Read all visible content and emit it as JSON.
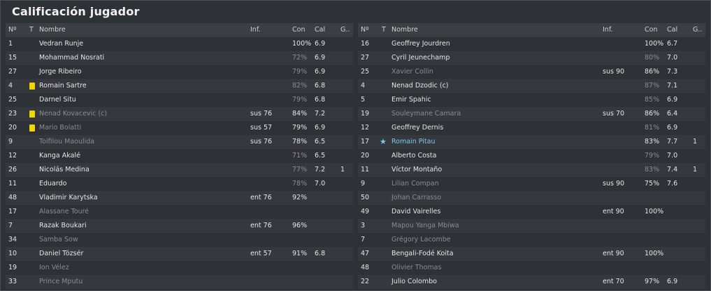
{
  "title": "Calificación jugador",
  "headers": {
    "num": "Nº",
    "t": "T",
    "name": "Nombre",
    "inf": "Inf.",
    "con": "Con",
    "cal": "Cal",
    "g": "G.."
  },
  "left_rows": [
    {
      "num": "1",
      "name": "Vedran Runje",
      "inf": "",
      "con": "100%",
      "cal": "6.9",
      "g": "",
      "dim": false,
      "card": false
    },
    {
      "num": "15",
      "name": "Mohammad Nosrati",
      "inf": "",
      "con": "72%",
      "cal": "6.9",
      "g": "",
      "dim": false,
      "card": false,
      "con_style": "dim"
    },
    {
      "num": "27",
      "name": "Jorge Ribeiro",
      "inf": "",
      "con": "79%",
      "cal": "6.9",
      "g": "",
      "dim": false,
      "card": false,
      "con_style": "dim"
    },
    {
      "num": "4",
      "name": "Romain Sartre",
      "inf": "",
      "con": "82%",
      "cal": "6.8",
      "g": "",
      "dim": false,
      "card": true,
      "con_style": "dim"
    },
    {
      "num": "25",
      "name": "Darnel Situ",
      "inf": "",
      "con": "79%",
      "cal": "6.8",
      "g": "",
      "dim": false,
      "card": false,
      "con_style": "dim"
    },
    {
      "num": "23",
      "name": "Nenad Kovacevic (c)",
      "inf": "sus 76",
      "con": "84%",
      "cal": "7.2",
      "g": "",
      "dim": true,
      "card": true
    },
    {
      "num": "20",
      "name": "Mario Bolatti",
      "inf": "sus 57",
      "con": "79%",
      "cal": "6.9",
      "g": "",
      "dim": true,
      "card": true
    },
    {
      "num": "9",
      "name": "Toifilou Maoulida",
      "inf": "sus 76",
      "con": "78%",
      "cal": "6.5",
      "g": "",
      "dim": true,
      "card": false
    },
    {
      "num": "12",
      "name": "Kanga Akalé",
      "inf": "",
      "con": "71%",
      "cal": "6.5",
      "g": "",
      "dim": false,
      "card": false,
      "con_style": "pink"
    },
    {
      "num": "26",
      "name": "Nicolás Medina",
      "inf": "",
      "con": "77%",
      "cal": "7.2",
      "g": "1",
      "dim": false,
      "card": false,
      "con_style": "dim"
    },
    {
      "num": "11",
      "name": "Eduardo",
      "inf": "",
      "con": "78%",
      "cal": "7.0",
      "g": "",
      "dim": false,
      "card": false,
      "con_style": "dim"
    },
    {
      "num": "48",
      "name": "Vladimir Karytska",
      "inf": "ent 76",
      "con": "92%",
      "cal": "",
      "g": "",
      "dim": false,
      "card": false
    },
    {
      "num": "17",
      "name": "Alassane Touré",
      "inf": "",
      "con": "",
      "cal": "",
      "g": "",
      "dim": true,
      "card": false
    },
    {
      "num": "7",
      "name": "Razak Boukari",
      "inf": "ent 76",
      "con": "96%",
      "cal": "",
      "g": "",
      "dim": false,
      "card": false
    },
    {
      "num": "34",
      "name": "Samba Sow",
      "inf": "",
      "con": "",
      "cal": "",
      "g": "",
      "dim": true,
      "card": false
    },
    {
      "num": "10",
      "name": "Daniel Tözsér",
      "inf": "ent 57",
      "con": "91%",
      "cal": "6.8",
      "g": "",
      "dim": false,
      "card": false
    },
    {
      "num": "19",
      "name": "Ion Vélez",
      "inf": "",
      "con": "",
      "cal": "",
      "g": "",
      "dim": true,
      "card": false
    },
    {
      "num": "33",
      "name": "Prince Mputu",
      "inf": "",
      "con": "",
      "cal": "",
      "g": "",
      "dim": true,
      "card": false
    }
  ],
  "right_rows": [
    {
      "num": "16",
      "name": "Geoffrey Jourdren",
      "inf": "",
      "con": "100%",
      "cal": "6.7",
      "g": "",
      "dim": false
    },
    {
      "num": "27",
      "name": "Cyril Jeunechamp",
      "inf": "",
      "con": "80%",
      "cal": "7.0",
      "g": "",
      "dim": false,
      "con_style": "dim"
    },
    {
      "num": "25",
      "name": "Xavier Collin",
      "inf": "sus 90",
      "con": "86%",
      "cal": "7.3",
      "g": "",
      "dim": true
    },
    {
      "num": "4",
      "name": "Nenad Dzodic (c)",
      "inf": "",
      "con": "87%",
      "cal": "7.1",
      "g": "",
      "dim": false,
      "con_style": "dim"
    },
    {
      "num": "5",
      "name": "Emir Spahic",
      "inf": "",
      "con": "85%",
      "cal": "6.9",
      "g": "",
      "dim": false,
      "con_style": "dim"
    },
    {
      "num": "19",
      "name": "Souleymane Camara",
      "inf": "sus 70",
      "con": "86%",
      "cal": "6.4",
      "g": "",
      "dim": true
    },
    {
      "num": "12",
      "name": "Geoffrey Dernis",
      "inf": "",
      "con": "81%",
      "cal": "6.9",
      "g": "",
      "dim": false,
      "con_style": "dim"
    },
    {
      "num": "17",
      "name": "Romain Pitau",
      "inf": "",
      "con": "83%",
      "cal": "7.7",
      "g": "1",
      "dim": false,
      "star": true
    },
    {
      "num": "20",
      "name": "Alberto Costa",
      "inf": "",
      "con": "79%",
      "cal": "7.0",
      "g": "",
      "dim": false,
      "con_style": "dim"
    },
    {
      "num": "11",
      "name": "Víctor Montaño",
      "inf": "",
      "con": "83%",
      "cal": "7.4",
      "g": "1",
      "dim": false,
      "con_style": "dim"
    },
    {
      "num": "9",
      "name": "Lilian Compan",
      "inf": "sus 90",
      "con": "75%",
      "cal": "7.6",
      "g": "",
      "dim": true
    },
    {
      "num": "50",
      "name": "Johan Carrasso",
      "inf": "",
      "con": "",
      "cal": "",
      "g": "",
      "dim": true
    },
    {
      "num": "49",
      "name": "David Vairelles",
      "inf": "ent 90",
      "con": "100%",
      "cal": "",
      "g": "",
      "dim": false
    },
    {
      "num": "3",
      "name": "Mapou Yanga Mbiwa",
      "inf": "",
      "con": "",
      "cal": "",
      "g": "",
      "dim": true
    },
    {
      "num": "7",
      "name": "Grégory Lacombe",
      "inf": "",
      "con": "",
      "cal": "",
      "g": "",
      "dim": true
    },
    {
      "num": "47",
      "name": "Bengali-Fodé Koita",
      "inf": "ent 90",
      "con": "100%",
      "cal": "",
      "g": "",
      "dim": false
    },
    {
      "num": "48",
      "name": "Olivier Thomas",
      "inf": "",
      "con": "",
      "cal": "",
      "g": "",
      "dim": true
    },
    {
      "num": "22",
      "name": "Julio Colombo",
      "inf": "ent 70",
      "con": "97%",
      "cal": "6.9",
      "g": "",
      "dim": false
    }
  ],
  "colors": {
    "card": "#f2d600",
    "highlight": "#7fc8f0",
    "dim_text": "#8a8c90"
  },
  "icons": {
    "card": "yellow-card-icon",
    "star": "star-icon"
  }
}
